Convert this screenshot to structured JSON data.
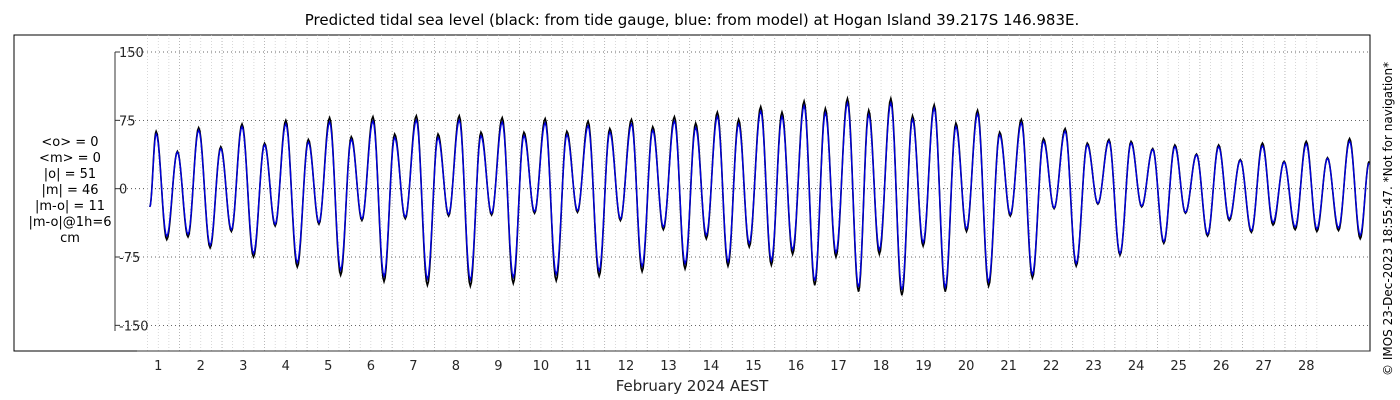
{
  "chart_data": {
    "type": "line",
    "title": "Predicted tidal sea level (black: from tide gauge, blue: from model) at Hogan Island 39.217S 146.983E.",
    "xlabel": "February 2024 AEST",
    "ylabel": "",
    "ylim": [
      -160,
      160
    ],
    "y_ticks": [
      -150,
      -75,
      0,
      75,
      150
    ],
    "y_tick_labels": [
      "-150",
      "-75",
      "0",
      "75",
      "150"
    ],
    "xlim_days": [
      0.0,
      29.0
    ],
    "x_ticks": [
      1,
      2,
      3,
      4,
      5,
      6,
      7,
      8,
      9,
      10,
      11,
      12,
      13,
      14,
      15,
      16,
      17,
      18,
      19,
      20,
      21,
      22,
      23,
      24,
      25,
      26,
      27,
      28
    ],
    "x_tick_labels": [
      "1",
      "2",
      "3",
      "4",
      "5",
      "6",
      "7",
      "8",
      "9",
      "10",
      "11",
      "12",
      "13",
      "14",
      "15",
      "16",
      "17",
      "18",
      "19",
      "20",
      "21",
      "22",
      "23",
      "24",
      "25",
      "26",
      "27",
      "28"
    ],
    "grid": true,
    "stats_lines": [
      "<o> = 0",
      "<m> = 0",
      "|o| = 51",
      "|m| = 46",
      "|m-o| = 11",
      "|m-o|@1h=6",
      "cm"
    ],
    "credit": "© IMOS 23-Dec-2023 18:55:47. *Not for navigation*",
    "series": [
      {
        "color": "#000000",
        "x_start_day": 0.23,
        "x_end_day": 28.98,
        "extrema": [
          {
            "day": 0.3,
            "value": -20
          },
          {
            "day": 0.45,
            "value": 63
          },
          {
            "day": 0.7,
            "value": -56
          },
          {
            "day": 0.95,
            "value": 41
          },
          {
            "day": 1.2,
            "value": -53
          },
          {
            "day": 1.45,
            "value": 67
          },
          {
            "day": 1.72,
            "value": -65
          },
          {
            "day": 1.97,
            "value": 46
          },
          {
            "day": 2.22,
            "value": -47
          },
          {
            "day": 2.47,
            "value": 71
          },
          {
            "day": 2.74,
            "value": -75
          },
          {
            "day": 3.0,
            "value": 50
          },
          {
            "day": 3.25,
            "value": -41
          },
          {
            "day": 3.5,
            "value": 75
          },
          {
            "day": 3.77,
            "value": -86
          },
          {
            "day": 4.03,
            "value": 54
          },
          {
            "day": 4.28,
            "value": -39
          },
          {
            "day": 4.53,
            "value": 78
          },
          {
            "day": 4.79,
            "value": -95
          },
          {
            "day": 5.04,
            "value": 57
          },
          {
            "day": 5.29,
            "value": -35
          },
          {
            "day": 5.55,
            "value": 79
          },
          {
            "day": 5.81,
            "value": -102
          },
          {
            "day": 6.06,
            "value": 60
          },
          {
            "day": 6.31,
            "value": -33
          },
          {
            "day": 6.57,
            "value": 80
          },
          {
            "day": 6.83,
            "value": -106
          },
          {
            "day": 7.08,
            "value": 60
          },
          {
            "day": 7.33,
            "value": -30
          },
          {
            "day": 7.58,
            "value": 80
          },
          {
            "day": 7.84,
            "value": -107
          },
          {
            "day": 8.09,
            "value": 62
          },
          {
            "day": 8.34,
            "value": -29
          },
          {
            "day": 8.59,
            "value": 78
          },
          {
            "day": 8.85,
            "value": -104
          },
          {
            "day": 9.1,
            "value": 62
          },
          {
            "day": 9.35,
            "value": -27
          },
          {
            "day": 9.6,
            "value": 77
          },
          {
            "day": 9.86,
            "value": -101
          },
          {
            "day": 10.11,
            "value": 63
          },
          {
            "day": 10.36,
            "value": -26
          },
          {
            "day": 10.61,
            "value": 74
          },
          {
            "day": 10.87,
            "value": -96
          },
          {
            "day": 11.12,
            "value": 66
          },
          {
            "day": 11.37,
            "value": -35
          },
          {
            "day": 11.63,
            "value": 76
          },
          {
            "day": 11.88,
            "value": -91
          },
          {
            "day": 12.13,
            "value": 68
          },
          {
            "day": 12.38,
            "value": -45
          },
          {
            "day": 12.64,
            "value": 79
          },
          {
            "day": 12.89,
            "value": -88
          },
          {
            "day": 13.14,
            "value": 72
          },
          {
            "day": 13.39,
            "value": -55
          },
          {
            "day": 13.65,
            "value": 84
          },
          {
            "day": 13.9,
            "value": -85
          },
          {
            "day": 14.15,
            "value": 76
          },
          {
            "day": 14.4,
            "value": -64
          },
          {
            "day": 14.67,
            "value": 90
          },
          {
            "day": 14.92,
            "value": -84
          },
          {
            "day": 15.17,
            "value": 84
          },
          {
            "day": 15.42,
            "value": -72
          },
          {
            "day": 15.69,
            "value": 96
          },
          {
            "day": 15.94,
            "value": -106
          },
          {
            "day": 16.19,
            "value": 88
          },
          {
            "day": 16.44,
            "value": -75
          },
          {
            "day": 16.71,
            "value": 99
          },
          {
            "day": 16.97,
            "value": -113
          },
          {
            "day": 17.21,
            "value": 86
          },
          {
            "day": 17.46,
            "value": -72
          },
          {
            "day": 17.73,
            "value": 99
          },
          {
            "day": 17.99,
            "value": -117
          },
          {
            "day": 18.24,
            "value": 80
          },
          {
            "day": 18.49,
            "value": -63
          },
          {
            "day": 18.75,
            "value": 92
          },
          {
            "day": 19.01,
            "value": -113
          },
          {
            "day": 19.26,
            "value": 72
          },
          {
            "day": 19.51,
            "value": -47
          },
          {
            "day": 19.77,
            "value": 86
          },
          {
            "day": 20.03,
            "value": -107
          },
          {
            "day": 20.29,
            "value": 62
          },
          {
            "day": 20.54,
            "value": -30
          },
          {
            "day": 20.8,
            "value": 76
          },
          {
            "day": 21.06,
            "value": -98
          },
          {
            "day": 21.32,
            "value": 55
          },
          {
            "day": 21.57,
            "value": -22
          },
          {
            "day": 21.83,
            "value": 66
          },
          {
            "day": 22.09,
            "value": -85
          },
          {
            "day": 22.35,
            "value": 50
          },
          {
            "day": 22.6,
            "value": -17
          },
          {
            "day": 22.86,
            "value": 54
          },
          {
            "day": 23.12,
            "value": -73
          },
          {
            "day": 23.38,
            "value": 52
          },
          {
            "day": 23.63,
            "value": -20
          },
          {
            "day": 23.89,
            "value": 44
          },
          {
            "day": 24.15,
            "value": -60
          },
          {
            "day": 24.41,
            "value": 48
          },
          {
            "day": 24.66,
            "value": -27
          },
          {
            "day": 24.92,
            "value": 38
          },
          {
            "day": 25.18,
            "value": -52
          },
          {
            "day": 25.44,
            "value": 48
          },
          {
            "day": 25.69,
            "value": -35
          },
          {
            "day": 25.95,
            "value": 32
          },
          {
            "day": 26.21,
            "value": -48
          },
          {
            "day": 26.47,
            "value": 50
          },
          {
            "day": 26.72,
            "value": -40
          },
          {
            "day": 26.98,
            "value": 30
          },
          {
            "day": 27.24,
            "value": -45
          },
          {
            "day": 27.5,
            "value": 52
          },
          {
            "day": 27.75,
            "value": -47
          },
          {
            "day": 28.0,
            "value": 34
          },
          {
            "day": 28.26,
            "value": -46
          },
          {
            "day": 28.52,
            "value": 55
          },
          {
            "day": 28.77,
            "value": -55
          },
          {
            "day": 28.98,
            "value": 30
          }
        ]
      },
      {
        "color": "#0000dd",
        "x_start_day": 0.23,
        "x_end_day": 28.98,
        "extrema": [
          {
            "day": 0.3,
            "value": -20
          },
          {
            "day": 0.45,
            "value": 60
          },
          {
            "day": 0.7,
            "value": -52
          },
          {
            "day": 0.95,
            "value": 40
          },
          {
            "day": 1.2,
            "value": -50
          },
          {
            "day": 1.45,
            "value": 64
          },
          {
            "day": 1.72,
            "value": -62
          },
          {
            "day": 1.97,
            "value": 44
          },
          {
            "day": 2.22,
            "value": -45
          },
          {
            "day": 2.47,
            "value": 68
          },
          {
            "day": 2.74,
            "value": -71
          },
          {
            "day": 3.0,
            "value": 48
          },
          {
            "day": 3.25,
            "value": -39
          },
          {
            "day": 3.5,
            "value": 71
          },
          {
            "day": 3.77,
            "value": -81
          },
          {
            "day": 4.03,
            "value": 51
          },
          {
            "day": 4.28,
            "value": -37
          },
          {
            "day": 4.53,
            "value": 73
          },
          {
            "day": 4.79,
            "value": -89
          },
          {
            "day": 5.04,
            "value": 54
          },
          {
            "day": 5.29,
            "value": -33
          },
          {
            "day": 5.55,
            "value": 74
          },
          {
            "day": 5.81,
            "value": -96
          },
          {
            "day": 6.06,
            "value": 56
          },
          {
            "day": 6.31,
            "value": -31
          },
          {
            "day": 6.57,
            "value": 75
          },
          {
            "day": 6.83,
            "value": -99
          },
          {
            "day": 7.08,
            "value": 56
          },
          {
            "day": 7.33,
            "value": -28
          },
          {
            "day": 7.58,
            "value": 75
          },
          {
            "day": 7.84,
            "value": -100
          },
          {
            "day": 8.09,
            "value": 58
          },
          {
            "day": 8.34,
            "value": -27
          },
          {
            "day": 8.59,
            "value": 73
          },
          {
            "day": 8.85,
            "value": -97
          },
          {
            "day": 9.1,
            "value": 58
          },
          {
            "day": 9.35,
            "value": -25
          },
          {
            "day": 9.6,
            "value": 72
          },
          {
            "day": 9.86,
            "value": -94
          },
          {
            "day": 10.11,
            "value": 59
          },
          {
            "day": 10.36,
            "value": -24
          },
          {
            "day": 10.61,
            "value": 69
          },
          {
            "day": 10.87,
            "value": -90
          },
          {
            "day": 11.12,
            "value": 62
          },
          {
            "day": 11.37,
            "value": -33
          },
          {
            "day": 11.63,
            "value": 71
          },
          {
            "day": 11.88,
            "value": -85
          },
          {
            "day": 12.13,
            "value": 64
          },
          {
            "day": 12.38,
            "value": -42
          },
          {
            "day": 12.64,
            "value": 74
          },
          {
            "day": 12.89,
            "value": -82
          },
          {
            "day": 13.14,
            "value": 67
          },
          {
            "day": 13.39,
            "value": -51
          },
          {
            "day": 13.65,
            "value": 79
          },
          {
            "day": 13.9,
            "value": -80
          },
          {
            "day": 14.15,
            "value": 71
          },
          {
            "day": 14.4,
            "value": -60
          },
          {
            "day": 14.67,
            "value": 85
          },
          {
            "day": 14.92,
            "value": -79
          },
          {
            "day": 15.17,
            "value": 79
          },
          {
            "day": 15.42,
            "value": -67
          },
          {
            "day": 15.69,
            "value": 91
          },
          {
            "day": 15.94,
            "value": -101
          },
          {
            "day": 16.19,
            "value": 83
          },
          {
            "day": 16.44,
            "value": -70
          },
          {
            "day": 16.71,
            "value": 94
          },
          {
            "day": 16.97,
            "value": -108
          },
          {
            "day": 17.21,
            "value": 81
          },
          {
            "day": 17.46,
            "value": -67
          },
          {
            "day": 17.73,
            "value": 94
          },
          {
            "day": 17.99,
            "value": -111
          },
          {
            "day": 18.24,
            "value": 76
          },
          {
            "day": 18.49,
            "value": -59
          },
          {
            "day": 18.75,
            "value": 88
          },
          {
            "day": 19.01,
            "value": -108
          },
          {
            "day": 19.26,
            "value": 68
          },
          {
            "day": 19.51,
            "value": -44
          },
          {
            "day": 19.77,
            "value": 82
          },
          {
            "day": 20.03,
            "value": -102
          },
          {
            "day": 20.29,
            "value": 59
          },
          {
            "day": 20.54,
            "value": -28
          },
          {
            "day": 20.8,
            "value": 72
          },
          {
            "day": 21.06,
            "value": -94
          },
          {
            "day": 21.32,
            "value": 52
          },
          {
            "day": 21.57,
            "value": -21
          },
          {
            "day": 21.83,
            "value": 63
          },
          {
            "day": 22.09,
            "value": -82
          },
          {
            "day": 22.35,
            "value": 48
          },
          {
            "day": 22.6,
            "value": -16
          },
          {
            "day": 22.86,
            "value": 52
          },
          {
            "day": 23.12,
            "value": -71
          },
          {
            "day": 23.38,
            "value": 50
          },
          {
            "day": 23.63,
            "value": -19
          },
          {
            "day": 23.89,
            "value": 43
          },
          {
            "day": 24.15,
            "value": -58
          },
          {
            "day": 24.41,
            "value": 46
          },
          {
            "day": 24.66,
            "value": -26
          },
          {
            "day": 24.92,
            "value": 37
          },
          {
            "day": 25.18,
            "value": -50
          },
          {
            "day": 25.44,
            "value": 46
          },
          {
            "day": 25.69,
            "value": -33
          },
          {
            "day": 25.95,
            "value": 31
          },
          {
            "day": 26.21,
            "value": -46
          },
          {
            "day": 26.47,
            "value": 47
          },
          {
            "day": 26.72,
            "value": -37
          },
          {
            "day": 26.98,
            "value": 29
          },
          {
            "day": 27.24,
            "value": -42
          },
          {
            "day": 27.5,
            "value": 49
          },
          {
            "day": 27.75,
            "value": -44
          },
          {
            "day": 28.0,
            "value": 33
          },
          {
            "day": 28.26,
            "value": -43
          },
          {
            "day": 28.52,
            "value": 52
          },
          {
            "day": 28.77,
            "value": -51
          },
          {
            "day": 28.98,
            "value": 28
          }
        ]
      }
    ]
  }
}
